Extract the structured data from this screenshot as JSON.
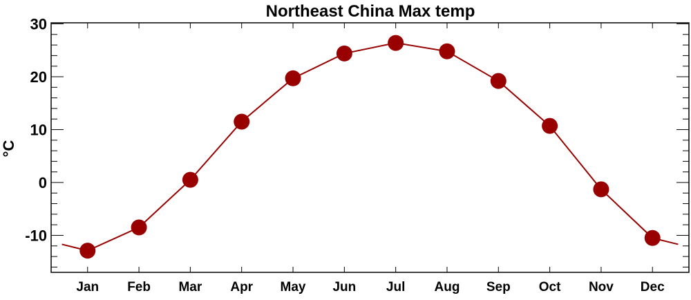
{
  "chart_data": {
    "type": "line",
    "title": "Northeast China Max temp",
    "xlabel": "",
    "ylabel": "°C",
    "categories": [
      "Jan",
      "Feb",
      "Mar",
      "Apr",
      "May",
      "Jun",
      "Jul",
      "Aug",
      "Sep",
      "Oct",
      "Nov",
      "Dec"
    ],
    "series": [
      {
        "name": "Max temp",
        "values": [
          -12.9,
          -8.5,
          0.5,
          11.5,
          19.7,
          24.4,
          26.4,
          24.8,
          19.2,
          10.7,
          -1.3,
          -10.5
        ],
        "color": "#990000"
      }
    ],
    "ylim": [
      -17,
      30.2
    ],
    "xlim": [
      0.29,
      12.71
    ],
    "yticks": [
      30,
      20,
      10,
      0,
      -10
    ],
    "ytick_labels": [
      "30",
      "20",
      "10",
      "0",
      "-10"
    ],
    "yminor_step": 2,
    "grid": false,
    "legend": "none"
  }
}
